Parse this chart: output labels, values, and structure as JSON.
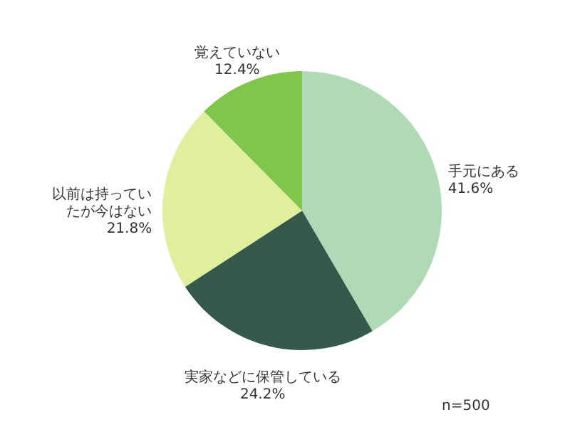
{
  "chart_data": {
    "type": "pie",
    "categories": [
      "手元にある",
      "実家などに保管している",
      "以前は持っていたが今はない",
      "覚えていない"
    ],
    "values": [
      41.6,
      24.2,
      21.8,
      12.4
    ],
    "value_labels": [
      "41.6%",
      "24.2%",
      "21.8%",
      "12.4%"
    ],
    "colors": [
      "#b0d9b5",
      "#35594b",
      "#e0ef9c",
      "#7fc64b"
    ],
    "annotations": [
      "n=500"
    ]
  }
}
